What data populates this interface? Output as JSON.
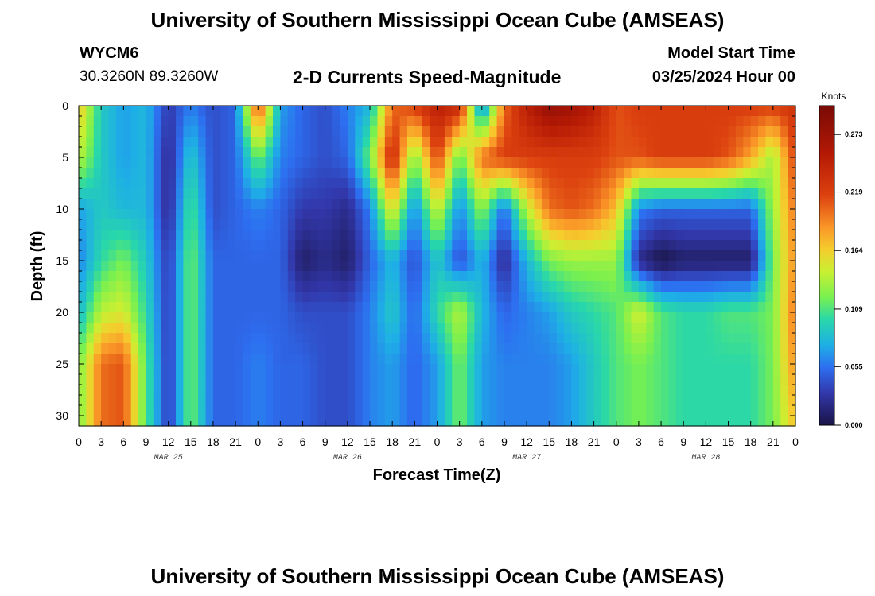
{
  "header": {
    "title": "University of Southern Mississippi Ocean Cube (AMSEAS)",
    "station_id": "WYCM6",
    "coordinates": "30.3260N  89.3260W",
    "subtitle": "2-D Currents Speed-Magnitude",
    "model_start_label": "Model Start Time",
    "model_start_value": "03/25/2024 Hour 00"
  },
  "footer": {
    "title": "University of Southern Mississippi Ocean Cube (AMSEAS)"
  },
  "chart_data": {
    "type": "heatmap",
    "title": "2-D Currents Speed-Magnitude",
    "xlabel": "Forecast Time(Z)",
    "ylabel": "Depth (ft)",
    "x_range_hours": [
      0,
      96
    ],
    "x_tick_labels": [
      "0",
      "3",
      "6",
      "9",
      "12",
      "15",
      "18",
      "21",
      "0",
      "3",
      "6",
      "9",
      "12",
      "15",
      "18",
      "21",
      "0",
      "3",
      "6",
      "9",
      "12",
      "15",
      "18",
      "21",
      "0",
      "3",
      "6",
      "9",
      "12",
      "15",
      "18",
      "21",
      "0"
    ],
    "date_labels": [
      "MAR 25",
      "MAR 26",
      "MAR 27",
      "MAR 28"
    ],
    "y_range_ft": [
      0,
      31
    ],
    "y_ticks": [
      0,
      5,
      10,
      15,
      20,
      25,
      30
    ],
    "colorbar": {
      "unit": "Knots",
      "range": [
        0,
        0.3
      ],
      "tick_labels": [
        "0.273",
        "0.219",
        "0.164",
        "0.109",
        "0.055",
        "0.000"
      ],
      "tick_values": [
        0.273,
        0.219,
        0.164,
        0.109,
        0.055,
        0.0
      ]
    },
    "hours": [
      0,
      3,
      6,
      9,
      12,
      15,
      18,
      21,
      24,
      27,
      30,
      33,
      36,
      39,
      42,
      45,
      48,
      51,
      54,
      57,
      60,
      63,
      66,
      69,
      72,
      75,
      78,
      81,
      84,
      87,
      90,
      93,
      96
    ],
    "depths_ft": [
      0,
      5,
      10,
      15,
      20,
      25,
      31
    ],
    "speed_knots": [
      [
        0.17,
        0.09,
        0.07,
        0.08,
        0.03,
        0.06,
        0.04,
        0.05,
        0.22,
        0.07,
        0.05,
        0.04,
        0.06,
        0.08,
        0.2,
        0.22,
        0.25,
        0.24,
        0.05,
        0.2,
        0.25,
        0.28,
        0.27,
        0.25,
        0.21,
        0.22,
        0.22,
        0.22,
        0.22,
        0.22,
        0.22,
        0.22,
        0.23
      ],
      [
        0.14,
        0.09,
        0.07,
        0.08,
        0.02,
        0.09,
        0.04,
        0.05,
        0.12,
        0.06,
        0.05,
        0.04,
        0.05,
        0.12,
        0.24,
        0.12,
        0.22,
        0.11,
        0.2,
        0.22,
        0.22,
        0.22,
        0.22,
        0.22,
        0.21,
        0.21,
        0.22,
        0.22,
        0.22,
        0.21,
        0.18,
        0.13,
        0.22
      ],
      [
        0.07,
        0.09,
        0.08,
        0.08,
        0.02,
        0.11,
        0.04,
        0.05,
        0.06,
        0.05,
        0.03,
        0.03,
        0.02,
        0.06,
        0.16,
        0.06,
        0.15,
        0.06,
        0.13,
        0.05,
        0.14,
        0.2,
        0.21,
        0.2,
        0.17,
        0.06,
        0.05,
        0.05,
        0.05,
        0.05,
        0.05,
        0.13,
        0.2
      ],
      [
        0.06,
        0.1,
        0.12,
        0.09,
        0.03,
        0.12,
        0.05,
        0.05,
        0.05,
        0.05,
        0.01,
        0.02,
        0.01,
        0.05,
        0.08,
        0.04,
        0.09,
        0.04,
        0.08,
        0.02,
        0.08,
        0.12,
        0.13,
        0.13,
        0.13,
        0.02,
        0.0,
        0.01,
        0.01,
        0.01,
        0.01,
        0.12,
        0.19
      ],
      [
        0.08,
        0.14,
        0.15,
        0.1,
        0.03,
        0.12,
        0.05,
        0.05,
        0.05,
        0.05,
        0.04,
        0.04,
        0.04,
        0.06,
        0.09,
        0.05,
        0.1,
        0.14,
        0.08,
        0.05,
        0.06,
        0.07,
        0.09,
        0.1,
        0.11,
        0.15,
        0.11,
        0.1,
        0.1,
        0.11,
        0.11,
        0.12,
        0.2
      ],
      [
        0.12,
        0.2,
        0.21,
        0.11,
        0.03,
        0.12,
        0.05,
        0.05,
        0.06,
        0.05,
        0.05,
        0.04,
        0.04,
        0.06,
        0.07,
        0.05,
        0.07,
        0.12,
        0.07,
        0.06,
        0.06,
        0.06,
        0.07,
        0.09,
        0.11,
        0.12,
        0.11,
        0.1,
        0.1,
        0.1,
        0.1,
        0.12,
        0.19
      ],
      [
        0.12,
        0.2,
        0.21,
        0.11,
        0.03,
        0.12,
        0.05,
        0.05,
        0.06,
        0.05,
        0.05,
        0.04,
        0.04,
        0.06,
        0.07,
        0.05,
        0.07,
        0.12,
        0.07,
        0.06,
        0.06,
        0.06,
        0.07,
        0.09,
        0.11,
        0.12,
        0.11,
        0.1,
        0.1,
        0.1,
        0.1,
        0.12,
        0.17
      ]
    ]
  }
}
